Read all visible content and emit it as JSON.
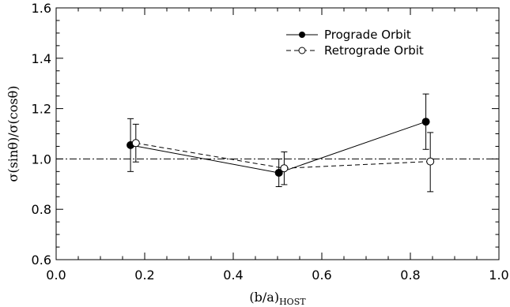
{
  "chart_data": {
    "type": "line",
    "xlabel": "(b/a)",
    "xlabel_subscript": "HOST",
    "ylabel": "σ(sinθ)/σ(cosθ)",
    "xlim": [
      0.0,
      1.0
    ],
    "ylim": [
      0.6,
      1.6
    ],
    "xticks": [
      "0.0",
      "0.2",
      "0.4",
      "0.6",
      "0.8",
      "1.0"
    ],
    "yticks": [
      "0.6",
      "0.8",
      "1.0",
      "1.2",
      "1.4",
      "1.6"
    ],
    "reference_line": {
      "y": 1.0,
      "style": "dash-dot"
    },
    "legend_position": "top-right",
    "series": [
      {
        "name": "Prograde Orbit",
        "marker": "filled-circle",
        "line": "solid",
        "x": [
          0.168,
          0.503,
          0.835
        ],
        "y": [
          1.055,
          0.945,
          1.148
        ],
        "err_low": [
          0.105,
          0.055,
          0.11
        ],
        "err_high": [
          0.105,
          0.055,
          0.11
        ]
      },
      {
        "name": "Retrograde Orbit",
        "marker": "open-circle",
        "line": "dashed",
        "x": [
          0.18,
          0.515,
          0.845
        ],
        "y": [
          1.063,
          0.963,
          0.99
        ],
        "err_low": [
          0.075,
          0.065,
          0.12
        ],
        "err_high": [
          0.075,
          0.065,
          0.115
        ]
      }
    ]
  }
}
